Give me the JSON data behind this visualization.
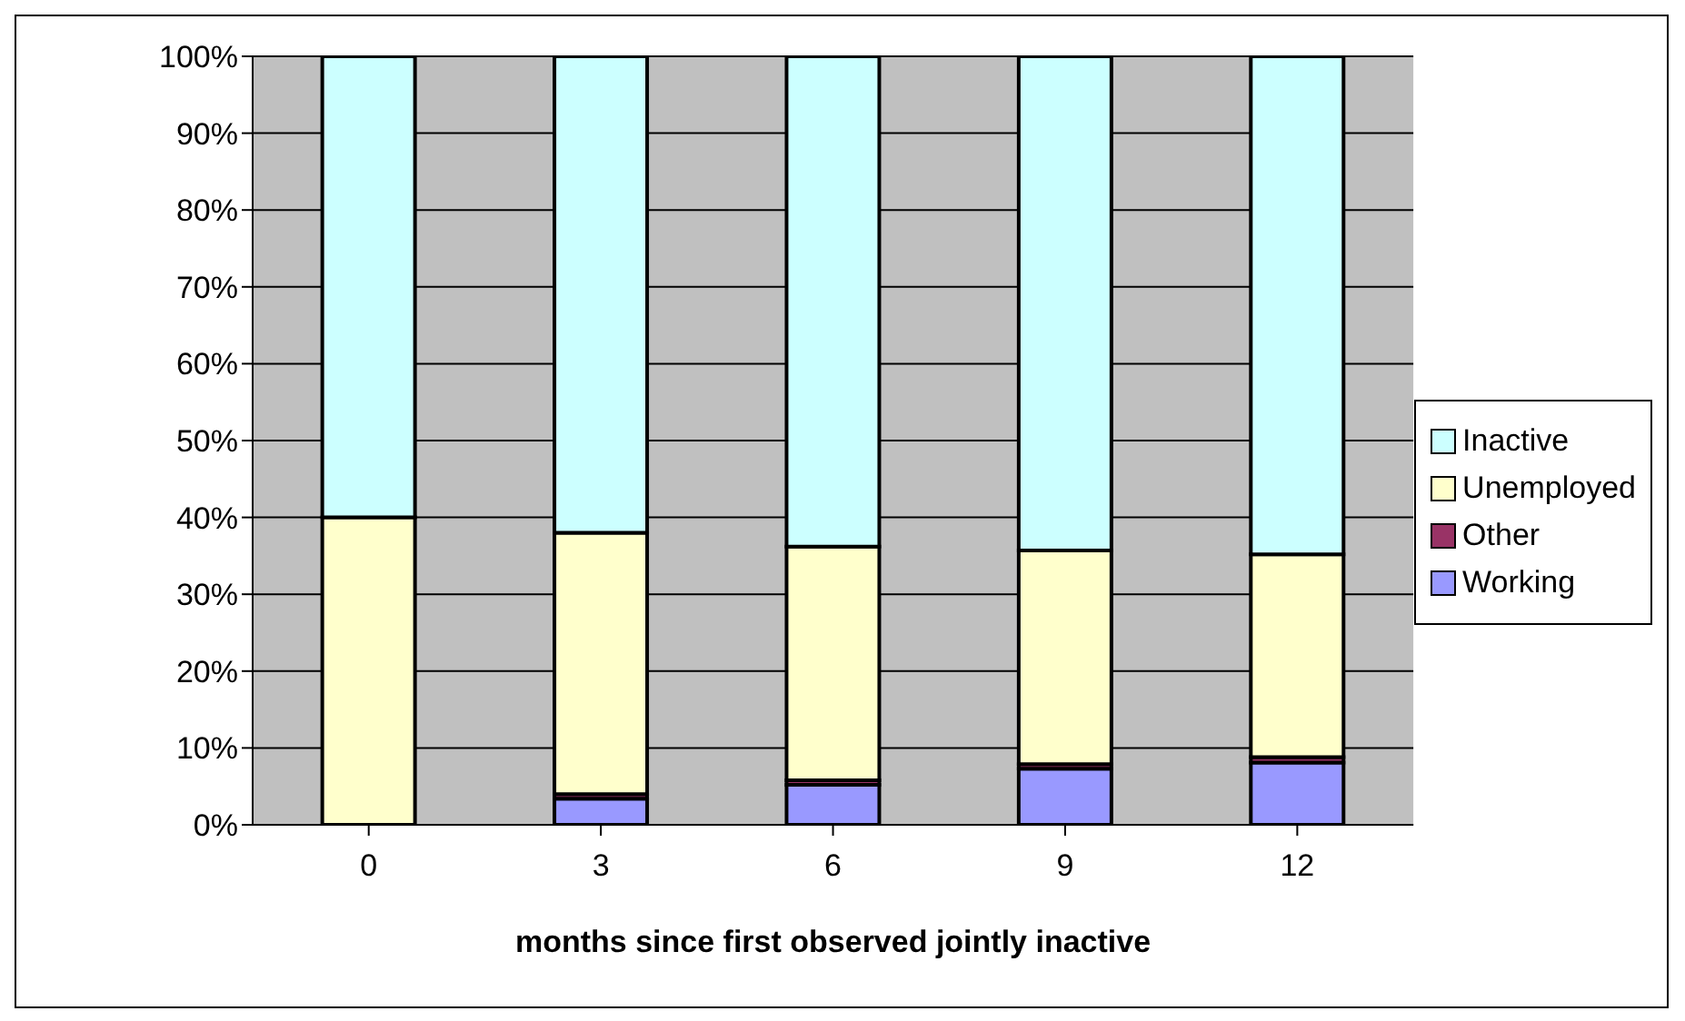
{
  "chart_data": {
    "type": "bar",
    "stacked": true,
    "xlabel": "months since first observed jointly inactive",
    "categories": [
      "0",
      "3",
      "6",
      "9",
      "12"
    ],
    "series": [
      {
        "name": "Working",
        "color": "#9999ff",
        "values": [
          0,
          3.4,
          5.2,
          7.3,
          8.1
        ]
      },
      {
        "name": "Other",
        "color": "#993366",
        "values": [
          0,
          0.6,
          0.6,
          0.6,
          0.7
        ]
      },
      {
        "name": "Unemployed",
        "color": "#ffffcc",
        "values": [
          40,
          34,
          30.4,
          27.8,
          26.4
        ]
      },
      {
        "name": "Inactive",
        "color": "#ccffff",
        "values": [
          60,
          62,
          63.8,
          64.3,
          64.8
        ]
      }
    ],
    "ylim": [
      0,
      100
    ],
    "yticks": [
      {
        "value": 0,
        "label": "0%"
      },
      {
        "value": 10,
        "label": "10%"
      },
      {
        "value": 20,
        "label": "20%"
      },
      {
        "value": 30,
        "label": "30%"
      },
      {
        "value": 40,
        "label": "40%"
      },
      {
        "value": 50,
        "label": "50%"
      },
      {
        "value": 60,
        "label": "60%"
      },
      {
        "value": 70,
        "label": "70%"
      },
      {
        "value": 80,
        "label": "80%"
      },
      {
        "value": 90,
        "label": "90%"
      },
      {
        "value": 100,
        "label": "100%"
      }
    ],
    "grid": "y",
    "legend": "right"
  }
}
